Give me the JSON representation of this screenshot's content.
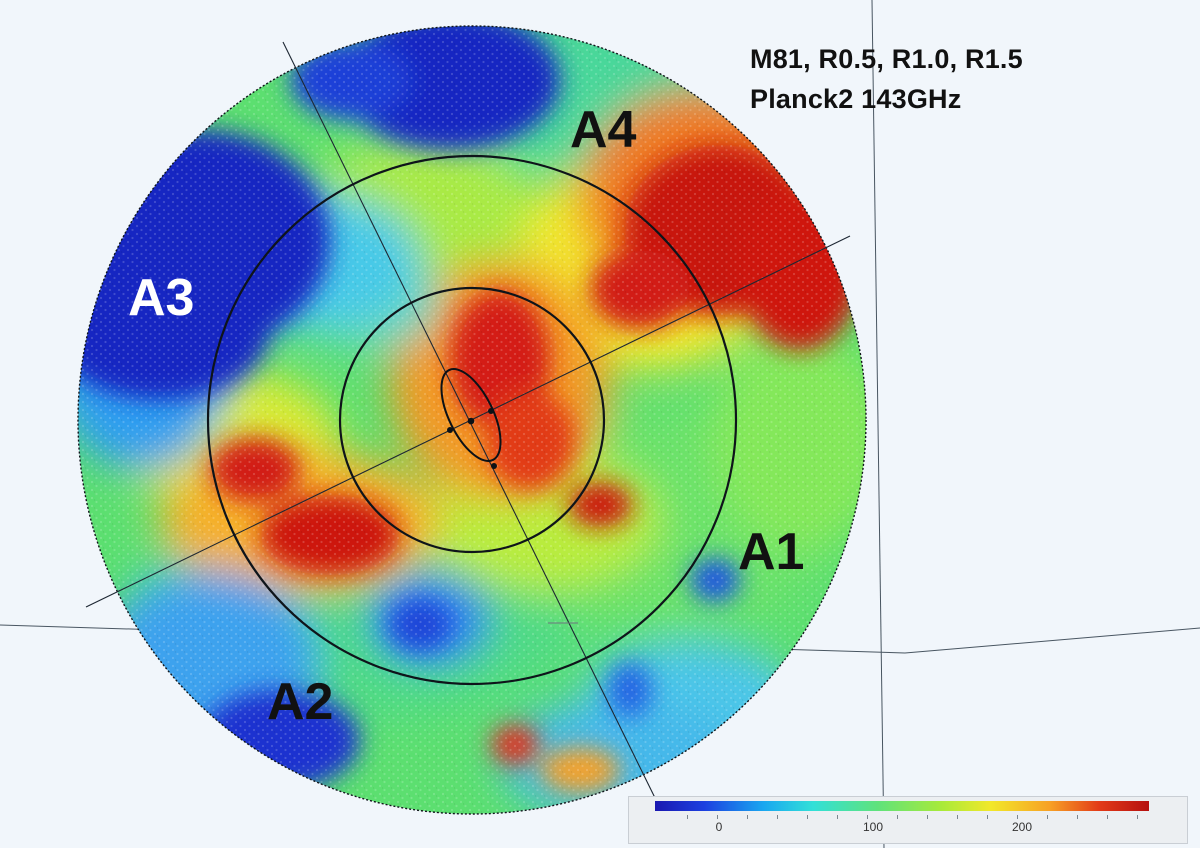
{
  "title": {
    "line1": "M81,  R0.5, R1.0, R1.5",
    "line2": "Planck2 143GHz"
  },
  "regions": {
    "a1": "A1",
    "a2": "A2",
    "a3": "A3",
    "a4": "A4"
  },
  "colorbar": {
    "labels": [
      "0",
      "100",
      "200"
    ],
    "colors": [
      "#1a18b0",
      "#1c40e0",
      "#19a7f0",
      "#32e0d8",
      "#5fe27c",
      "#a8ea3a",
      "#f2e82a",
      "#f7a025",
      "#e23a18",
      "#b51010"
    ]
  },
  "map_colors": {
    "deep_blue": "#0f1fb8",
    "blue": "#1f55e6",
    "cyan": "#37d2f0",
    "green": "#58df6c",
    "yellow_green": "#b6ec3c",
    "yellow": "#f2ea2e",
    "orange": "#f59a26",
    "red": "#e03316",
    "dark_red": "#b80e10"
  }
}
